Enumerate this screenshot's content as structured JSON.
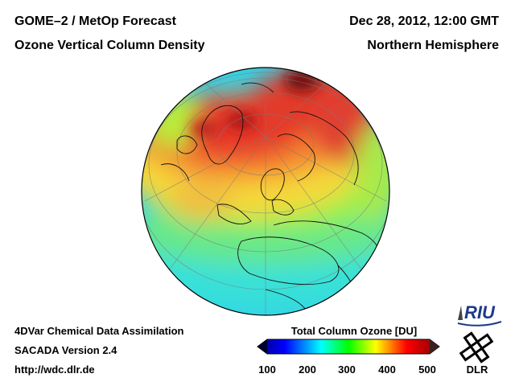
{
  "header": {
    "title_line1": "GOME–2 / MetOp Forecast",
    "title_line2": "Ozone Vertical Column Density",
    "date": "Dec 28, 2012, 12:00 GMT",
    "region": "Northern Hemisphere"
  },
  "footer": {
    "line1": "4DVar Chemical Data Assimilation",
    "line2": "SACADA Version 2.4",
    "line3": "http://wdc.dlr.de"
  },
  "colorbar": {
    "title": "Total Column Ozone [DU]",
    "ticks": [
      "100",
      "200",
      "300",
      "400",
      "500"
    ],
    "range": [
      100,
      500
    ],
    "colors": [
      "#000080",
      "#0000ff",
      "#00ffff",
      "#00ff00",
      "#ffff00",
      "#ff0000",
      "#800000"
    ]
  },
  "logos": {
    "riu": "RIU",
    "dlr": "DLR"
  },
  "map": {
    "projection": "orthographic, northern hemisphere",
    "variable": "Total column ozone"
  }
}
